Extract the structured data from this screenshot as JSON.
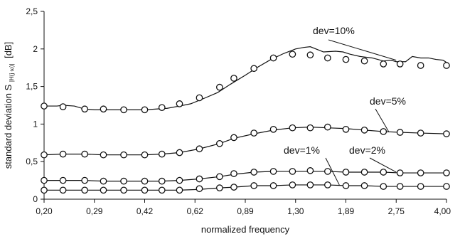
{
  "chart_data": {
    "type": "line",
    "xlabel": "normalized frequency",
    "ylabel": "standard deviation S",
    "ylabel_subscript": "|H(j ω)|",
    "ylabel_unit": "[dB]",
    "ylim": [
      0,
      2.5
    ],
    "yticks": [
      0,
      0.5,
      1,
      1.5,
      2,
      2.5
    ],
    "ytick_labels": [
      "0",
      "0,5",
      "1",
      "1,5",
      "2",
      "2,5"
    ],
    "x_scale": "log",
    "xlim": [
      0.2,
      4.0
    ],
    "xticks": [
      0.2,
      0.29,
      0.42,
      0.62,
      0.89,
      1.3,
      1.89,
      2.75,
      4.0
    ],
    "xtick_labels": [
      "0,20",
      "0,29",
      "0,42",
      "0,62",
      "0,89",
      "1,30",
      "1,89",
      "2,75",
      "4,00"
    ],
    "grid": false,
    "legend": "none",
    "series": [
      {
        "name": "dev=10%",
        "curve_x": [
          0.2,
          0.21,
          0.22,
          0.23,
          0.25,
          0.27,
          0.29,
          0.31,
          0.34,
          0.38,
          0.42,
          0.46,
          0.5,
          0.55,
          0.6,
          0.66,
          0.73,
          0.8,
          0.89,
          0.98,
          1.08,
          1.19,
          1.3,
          1.38,
          1.45,
          1.6,
          1.75,
          1.85,
          1.95,
          2.1,
          2.3,
          2.5,
          2.65,
          2.75,
          2.95,
          3.1,
          3.3,
          3.5,
          3.7,
          3.9,
          4.0
        ],
        "curve_y": [
          1.24,
          1.24,
          1.24,
          1.25,
          1.24,
          1.2,
          1.19,
          1.19,
          1.19,
          1.19,
          1.19,
          1.2,
          1.21,
          1.24,
          1.27,
          1.34,
          1.42,
          1.53,
          1.65,
          1.76,
          1.86,
          1.94,
          2.0,
          2.02,
          2.03,
          1.96,
          1.97,
          1.96,
          1.93,
          1.9,
          1.88,
          1.84,
          1.85,
          1.83,
          1.83,
          1.9,
          1.88,
          1.88,
          1.86,
          1.85,
          1.82
        ],
        "points_x": [
          0.2,
          0.23,
          0.27,
          0.31,
          0.36,
          0.42,
          0.48,
          0.55,
          0.64,
          0.74,
          0.82,
          0.95,
          1.1,
          1.27,
          1.45,
          1.65,
          1.89,
          2.17,
          2.5,
          2.83,
          3.3,
          4.0
        ],
        "points_y": [
          1.24,
          1.23,
          1.2,
          1.2,
          1.19,
          1.19,
          1.22,
          1.27,
          1.35,
          1.49,
          1.61,
          1.74,
          1.88,
          1.93,
          1.92,
          1.88,
          1.86,
          1.84,
          1.8,
          1.8,
          1.78,
          1.78
        ]
      },
      {
        "name": "dev=5%",
        "curve_x": [
          0.2,
          0.23,
          0.27,
          0.31,
          0.36,
          0.42,
          0.48,
          0.55,
          0.64,
          0.74,
          0.82,
          0.95,
          1.1,
          1.27,
          1.45,
          1.65,
          1.89,
          2.17,
          2.5,
          2.83,
          3.3,
          4.0
        ],
        "curve_y": [
          0.59,
          0.6,
          0.6,
          0.59,
          0.59,
          0.59,
          0.6,
          0.62,
          0.67,
          0.74,
          0.81,
          0.87,
          0.92,
          0.95,
          0.96,
          0.95,
          0.94,
          0.92,
          0.9,
          0.89,
          0.88,
          0.87
        ],
        "points_x": [
          0.2,
          0.23,
          0.27,
          0.31,
          0.36,
          0.42,
          0.48,
          0.55,
          0.64,
          0.74,
          0.82,
          0.95,
          1.1,
          1.27,
          1.45,
          1.65,
          1.89,
          2.17,
          2.5,
          2.83,
          3.3,
          4.0
        ],
        "points_y": [
          0.59,
          0.6,
          0.6,
          0.59,
          0.59,
          0.59,
          0.6,
          0.62,
          0.67,
          0.74,
          0.82,
          0.88,
          0.93,
          0.95,
          0.95,
          0.96,
          0.93,
          0.92,
          0.9,
          0.89,
          0.88,
          0.87
        ]
      },
      {
        "name": "dev=2%",
        "curve_x": [
          0.2,
          0.23,
          0.27,
          0.31,
          0.36,
          0.42,
          0.48,
          0.55,
          0.64,
          0.74,
          0.82,
          0.95,
          1.1,
          1.27,
          1.45,
          1.65,
          1.89,
          2.17,
          2.5,
          2.83,
          3.3,
          4.0
        ],
        "curve_y": [
          0.25,
          0.25,
          0.25,
          0.24,
          0.24,
          0.24,
          0.24,
          0.25,
          0.27,
          0.3,
          0.33,
          0.36,
          0.37,
          0.37,
          0.37,
          0.37,
          0.36,
          0.36,
          0.36,
          0.35,
          0.35,
          0.35
        ],
        "points_x": [
          0.2,
          0.23,
          0.27,
          0.31,
          0.36,
          0.42,
          0.48,
          0.55,
          0.64,
          0.74,
          0.82,
          0.95,
          1.1,
          1.27,
          1.45,
          1.65,
          1.89,
          2.17,
          2.5,
          2.83,
          3.3,
          4.0
        ],
        "points_y": [
          0.25,
          0.25,
          0.25,
          0.24,
          0.24,
          0.24,
          0.24,
          0.25,
          0.27,
          0.3,
          0.34,
          0.36,
          0.37,
          0.37,
          0.38,
          0.37,
          0.36,
          0.36,
          0.36,
          0.35,
          0.35,
          0.35
        ]
      },
      {
        "name": "dev=1%",
        "curve_x": [
          0.2,
          0.23,
          0.27,
          0.31,
          0.36,
          0.42,
          0.48,
          0.55,
          0.64,
          0.74,
          0.82,
          0.95,
          1.1,
          1.27,
          1.45,
          1.65,
          1.89,
          2.17,
          2.5,
          2.83,
          3.3,
          4.0
        ],
        "curve_y": [
          0.12,
          0.12,
          0.12,
          0.12,
          0.12,
          0.12,
          0.12,
          0.12,
          0.13,
          0.15,
          0.16,
          0.18,
          0.18,
          0.19,
          0.19,
          0.19,
          0.18,
          0.18,
          0.17,
          0.17,
          0.17,
          0.17
        ],
        "points_x": [
          0.2,
          0.23,
          0.27,
          0.31,
          0.36,
          0.42,
          0.48,
          0.55,
          0.64,
          0.74,
          0.82,
          0.95,
          1.1,
          1.27,
          1.45,
          1.65,
          1.89,
          2.17,
          2.5,
          2.83,
          3.3,
          4.0
        ],
        "points_y": [
          0.12,
          0.12,
          0.12,
          0.12,
          0.12,
          0.12,
          0.12,
          0.12,
          0.14,
          0.15,
          0.16,
          0.18,
          0.18,
          0.19,
          0.19,
          0.19,
          0.18,
          0.18,
          0.17,
          0.17,
          0.17,
          0.17
        ]
      }
    ],
    "annotations": [
      {
        "text": "dev=10%",
        "points_to": {
          "x": 2.75,
          "y": 1.85
        }
      },
      {
        "text": "dev=5%",
        "points_to": {
          "x": 2.6,
          "y": 0.9
        }
      },
      {
        "text": "dev=2%",
        "points_to": {
          "x": 2.75,
          "y": 0.36
        }
      },
      {
        "text": "dev=1%",
        "points_to": {
          "x": 1.8,
          "y": 0.19
        }
      }
    ]
  }
}
